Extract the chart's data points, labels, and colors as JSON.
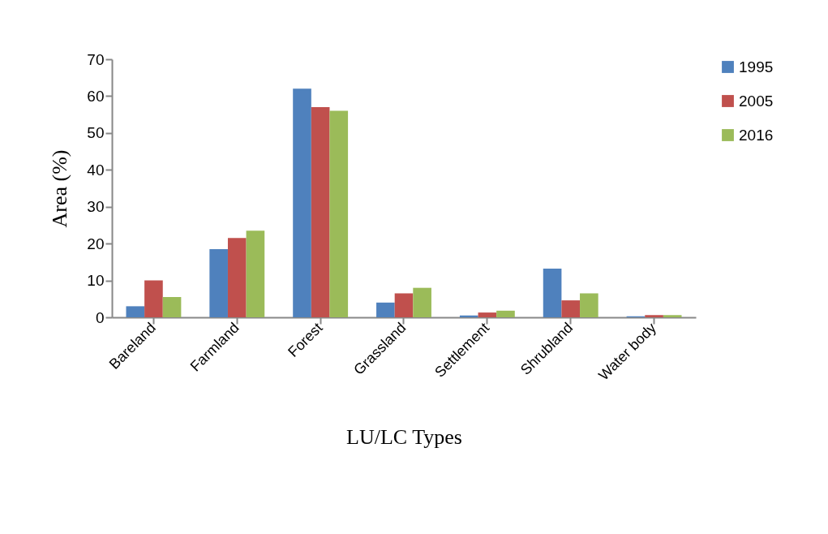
{
  "chart_data": {
    "type": "bar",
    "xlabel": "LU/LC Types",
    "ylabel": "Area (%)",
    "categories": [
      "Bareland",
      "Farmland",
      "Forest",
      "Grassland",
      "Settlement",
      "Shrubland",
      "Water  body"
    ],
    "series": [
      {
        "name": "1995",
        "color": "#4f81bd",
        "values": [
          3,
          18.5,
          62,
          4,
          0.5,
          13.2,
          0.3
        ]
      },
      {
        "name": "2005",
        "color": "#c0504d",
        "values": [
          10,
          21.5,
          57,
          6.5,
          1.3,
          4.6,
          0.6
        ]
      },
      {
        "name": "2016",
        "color": "#9bbb59",
        "values": [
          5.5,
          23.5,
          56,
          8,
          1.8,
          6.5,
          0.6
        ]
      }
    ],
    "ylim": [
      0,
      70
    ],
    "yticks": [
      0,
      10,
      20,
      30,
      40,
      50,
      60,
      70
    ],
    "grid": false,
    "legend": "right"
  }
}
